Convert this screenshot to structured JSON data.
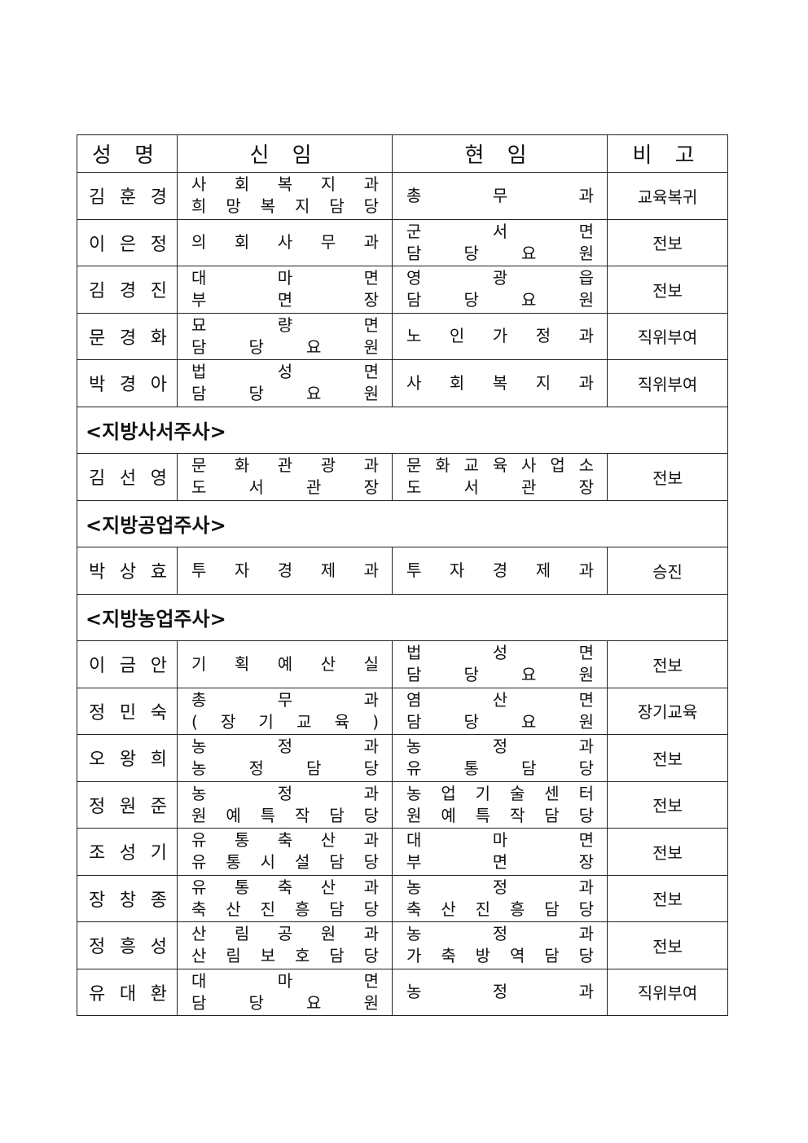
{
  "header": {
    "name": "성 명",
    "new_post": "신 임",
    "current_post": "현 임",
    "remarks": "비 고"
  },
  "groups": [
    {
      "title": "",
      "rows": [
        {
          "name": "김 훈 경",
          "new": [
            "사 회 복 지 과",
            "희 망 복 지 담 당"
          ],
          "current": [
            "총 무 과"
          ],
          "note": "교육복귀"
        },
        {
          "name": "이 은 정",
          "new": [
            "의 회 사 무 과"
          ],
          "current": [
            "군 서 면",
            "담 당 요 원"
          ],
          "note": "전보"
        },
        {
          "name": "김 경 진",
          "new": [
            "대 마 면",
            "부 면 장"
          ],
          "current": [
            "영 광 읍",
            "담 당 요 원"
          ],
          "note": "전보"
        },
        {
          "name": "문 경 화",
          "new": [
            "묘 량 면",
            "담 당 요 원"
          ],
          "current": [
            "노 인 가 정 과"
          ],
          "note": "직위부여"
        },
        {
          "name": "박 경 아",
          "new": [
            "법 성 면",
            "담 당 요 원"
          ],
          "current": [
            "사 회 복 지 과"
          ],
          "note": "직위부여"
        }
      ]
    },
    {
      "title": "<지방사서주사>",
      "rows": [
        {
          "name": "김 선 영",
          "new": [
            "문 화 관 광 과",
            "도 서 관 장"
          ],
          "current": [
            "문 화 교 육 사 업 소",
            "도 서 관 장"
          ],
          "note": "전보"
        }
      ]
    },
    {
      "title": "<지방공업주사>",
      "rows": [
        {
          "name": "박 상 효",
          "new": [
            "투 자 경 제 과"
          ],
          "current": [
            "투 자 경 제 과"
          ],
          "note": "승진"
        }
      ]
    },
    {
      "title": "<지방농업주사>",
      "rows": [
        {
          "name": "이 금 안",
          "new": [
            "기 획 예 산 실"
          ],
          "current": [
            "법 성 면",
            "담 당 요 원"
          ],
          "note": "전보"
        },
        {
          "name": "정 민 숙",
          "new": [
            "총 무 과",
            "( 장 기 교 육 )"
          ],
          "current": [
            "염 산 면",
            "담 당 요 원"
          ],
          "note": "장기교육"
        },
        {
          "name": "오 왕 희",
          "new": [
            "농 정 과",
            "농 정 담 당"
          ],
          "current": [
            "농 정 과",
            "유 통 담 당"
          ],
          "note": "전보"
        },
        {
          "name": "정 원 준",
          "new": [
            "농 정 과",
            "원 예 특 작 담 당"
          ],
          "current": [
            "농 업 기 술 센 터",
            "원 예 특 작 담 당"
          ],
          "note": "전보"
        },
        {
          "name": "조 성 기",
          "new": [
            "유 통 축 산 과",
            "유 통 시 설 담 당"
          ],
          "current": [
            "대 마 면",
            "부 면 장"
          ],
          "note": "전보"
        },
        {
          "name": "장 창 종",
          "new": [
            "유 통 축 산 과",
            "축 산 진 흥 담 당"
          ],
          "current": [
            "농 정 과",
            "축 산 진 흥 담 당"
          ],
          "note": "전보"
        },
        {
          "name": "정 흥 성",
          "new": [
            "산 림 공 원 과",
            "산 림 보 호 담 당"
          ],
          "current": [
            "농 정 과",
            "가 축 방 역 담 당"
          ],
          "note": "전보"
        },
        {
          "name": "유 대 환",
          "new": [
            "대 마 면",
            "담 당 요 원"
          ],
          "current": [
            "농 정 과"
          ],
          "note": "직위부여"
        }
      ]
    }
  ]
}
